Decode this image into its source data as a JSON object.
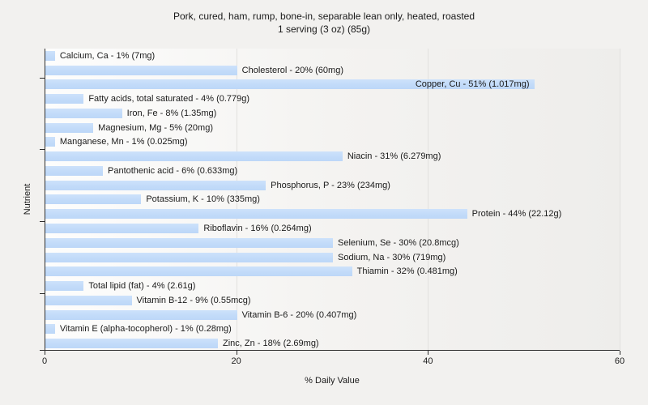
{
  "chart_data": {
    "type": "bar",
    "orientation": "horizontal",
    "title": "Pork, cured, ham, rump, bone-in, separable lean only, heated, roasted",
    "subtitle": "1 serving (3 oz) (85g)",
    "xlabel": "% Daily Value",
    "ylabel": "Nutrient",
    "xlim": [
      0,
      60
    ],
    "xticks": [
      0,
      20,
      40,
      60
    ],
    "grid": "faint vertical gridlines at x ticks",
    "legend": "none",
    "bar_color": "#c2dbf9",
    "ytick_boundaries": [
      2,
      7,
      12,
      17,
      21
    ],
    "bars": [
      {
        "label": "Calcium, Ca - 1% (7mg)",
        "nutrient": "Calcium, Ca",
        "percent": 1,
        "amount": "7mg"
      },
      {
        "label": "Cholesterol - 20% (60mg)",
        "nutrient": "Cholesterol",
        "percent": 20,
        "amount": "60mg"
      },
      {
        "label": "Copper, Cu - 51% (1.017mg)",
        "nutrient": "Copper, Cu",
        "percent": 51,
        "amount": "1.017mg"
      },
      {
        "label": "Fatty acids, total saturated - 4% (0.779g)",
        "nutrient": "Fatty acids, total saturated",
        "percent": 4,
        "amount": "0.779g"
      },
      {
        "label": "Iron, Fe - 8% (1.35mg)",
        "nutrient": "Iron, Fe",
        "percent": 8,
        "amount": "1.35mg"
      },
      {
        "label": "Magnesium, Mg - 5% (20mg)",
        "nutrient": "Magnesium, Mg",
        "percent": 5,
        "amount": "20mg"
      },
      {
        "label": "Manganese, Mn - 1% (0.025mg)",
        "nutrient": "Manganese, Mn",
        "percent": 1,
        "amount": "0.025mg"
      },
      {
        "label": "Niacin - 31% (6.279mg)",
        "nutrient": "Niacin",
        "percent": 31,
        "amount": "6.279mg"
      },
      {
        "label": "Pantothenic acid - 6% (0.633mg)",
        "nutrient": "Pantothenic acid",
        "percent": 6,
        "amount": "0.633mg"
      },
      {
        "label": "Phosphorus, P - 23% (234mg)",
        "nutrient": "Phosphorus, P",
        "percent": 23,
        "amount": "234mg"
      },
      {
        "label": "Potassium, K - 10% (335mg)",
        "nutrient": "Potassium, K",
        "percent": 10,
        "amount": "335mg"
      },
      {
        "label": "Protein - 44% (22.12g)",
        "nutrient": "Protein",
        "percent": 44,
        "amount": "22.12g"
      },
      {
        "label": "Riboflavin - 16% (0.264mg)",
        "nutrient": "Riboflavin",
        "percent": 16,
        "amount": "0.264mg"
      },
      {
        "label": "Selenium, Se - 30% (20.8mcg)",
        "nutrient": "Selenium, Se",
        "percent": 30,
        "amount": "20.8mcg"
      },
      {
        "label": "Sodium, Na - 30% (719mg)",
        "nutrient": "Sodium, Na",
        "percent": 30,
        "amount": "719mg"
      },
      {
        "label": "Thiamin - 32% (0.481mg)",
        "nutrient": "Thiamin",
        "percent": 32,
        "amount": "0.481mg"
      },
      {
        "label": "Total lipid (fat) - 4% (2.61g)",
        "nutrient": "Total lipid (fat)",
        "percent": 4,
        "amount": "2.61g"
      },
      {
        "label": "Vitamin B-12 - 9% (0.55mcg)",
        "nutrient": "Vitamin B-12",
        "percent": 9,
        "amount": "0.55mcg"
      },
      {
        "label": "Vitamin B-6 - 20% (0.407mg)",
        "nutrient": "Vitamin B-6",
        "percent": 20,
        "amount": "0.407mg"
      },
      {
        "label": "Vitamin E (alpha-tocopherol) - 1% (0.28mg)",
        "nutrient": "Vitamin E (alpha-tocopherol)",
        "percent": 1,
        "amount": "0.28mg"
      },
      {
        "label": "Zinc, Zn - 18% (2.69mg)",
        "nutrient": "Zinc, Zn",
        "percent": 18,
        "amount": "2.69mg"
      }
    ]
  }
}
